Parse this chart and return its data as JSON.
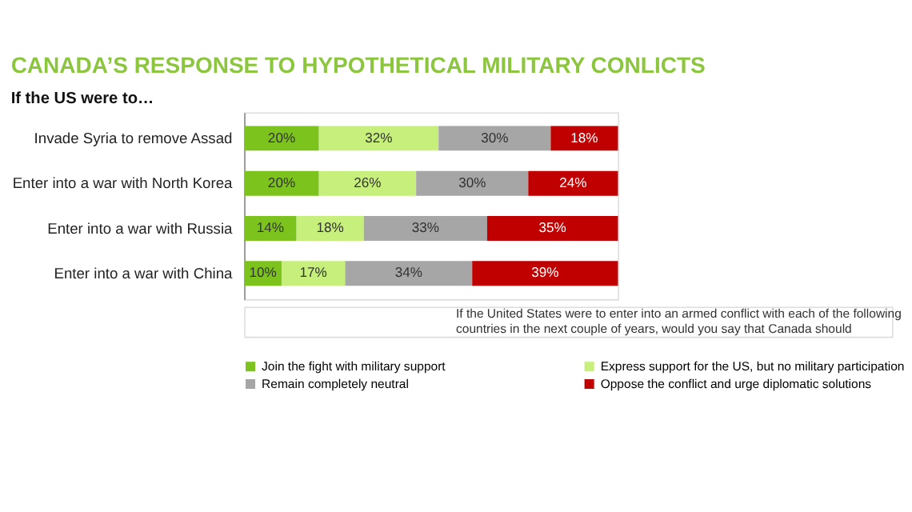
{
  "chart_data": {
    "type": "bar",
    "orientation": "horizontal",
    "stacked": true,
    "title": "CANADA’S RESPONSE TO HYPOTHETICAL MILITARY CONLICTS",
    "subtitle": "If the US were to…",
    "categories": [
      "Invade Syria to remove Assad",
      "Enter into a war with North Korea",
      "Enter into a war with Russia",
      "Enter into a war with China"
    ],
    "series": [
      {
        "name": "Join the fight with military support",
        "color": "#7dc31e",
        "values": [
          20,
          20,
          14,
          10
        ],
        "value_labels": [
          "20%",
          "20%",
          "14%",
          "10%"
        ]
      },
      {
        "name": "Express support for the US, but no military participation",
        "color": "#c6ef7b",
        "values": [
          32,
          26,
          18,
          17
        ],
        "value_labels": [
          "32%",
          "26%",
          "18%",
          "17%"
        ]
      },
      {
        "name": "Remain completely neutral",
        "color": "#a6a6a6",
        "values": [
          30,
          30,
          33,
          34
        ],
        "value_labels": [
          "30%",
          "30%",
          "33%",
          "34%"
        ]
      },
      {
        "name": "Oppose the conflict and urge diplomatic solutions",
        "color": "#c00000",
        "values": [
          18,
          24,
          35,
          39
        ],
        "value_labels": [
          "18%",
          "24%",
          "35%",
          "39%"
        ]
      }
    ],
    "legend": "bottom",
    "annotations": [
      "If the United States were to enter into an armed conflict with each of the following countries in the next couple of years, would you say that Canada should"
    ]
  }
}
